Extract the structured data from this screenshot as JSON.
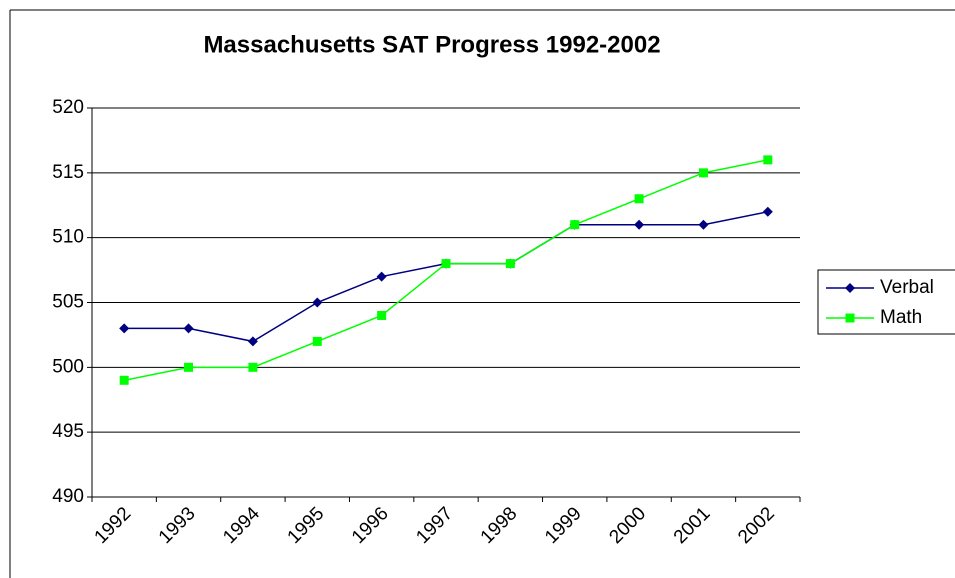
{
  "chart_data": {
    "type": "line",
    "title": "Massachusetts SAT Progress 1992-2002",
    "categories": [
      "1992",
      "1993",
      "1994",
      "1995",
      "1996",
      "1997",
      "1998",
      "1999",
      "2000",
      "2001",
      "2002"
    ],
    "series": [
      {
        "name": "Verbal",
        "color": "#000080",
        "marker": "diamond",
        "values": [
          503,
          503,
          502,
          505,
          507,
          508,
          508,
          511,
          511,
          511,
          512
        ]
      },
      {
        "name": "Math",
        "color": "#00ff00",
        "marker": "square",
        "values": [
          499,
          500,
          500,
          502,
          504,
          508,
          508,
          511,
          513,
          515,
          516
        ]
      }
    ],
    "ylim": [
      490,
      520
    ],
    "yticks": [
      490,
      495,
      500,
      505,
      510,
      515,
      520
    ],
    "grid": true,
    "legend": "right"
  }
}
